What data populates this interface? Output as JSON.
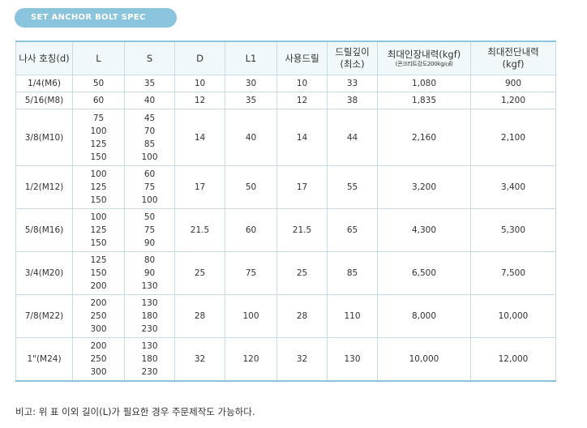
{
  "title": "SET ANCHOR BOLT SPEC",
  "headers": {
    "size": "나사 호칭(d)",
    "L": "L",
    "S": "S",
    "D": "D",
    "L1": "L1",
    "drill": "사용드릴",
    "depth1": "드릴깊이",
    "depth2": "(최소)",
    "tensile": "최대인장내력(kgf)",
    "tensile_note": "(콘크리트강도200kg/㎠)",
    "shear1": "최대전단내력",
    "shear2": "(kgf)"
  },
  "rows": [
    {
      "size": "1/4(M6)",
      "L": [
        "50"
      ],
      "S": [
        "35"
      ],
      "D": "10",
      "L1": "30",
      "drill": "10",
      "depth": "33",
      "tensile": "1,080",
      "shear": "900"
    },
    {
      "size": "5/16(M8)",
      "L": [
        "60"
      ],
      "S": [
        "40"
      ],
      "D": "12",
      "L1": "35",
      "drill": "12",
      "depth": "38",
      "tensile": "1,835",
      "shear": "1,200"
    },
    {
      "size": "3/8(M10)",
      "L": [
        "75",
        "100",
        "125",
        "150"
      ],
      "S": [
        "45",
        "70",
        "85",
        "100"
      ],
      "D": "14",
      "L1": "40",
      "drill": "14",
      "depth": "44",
      "tensile": "2,160",
      "shear": "2,100"
    },
    {
      "size": "1/2(M12)",
      "L": [
        "100",
        "125",
        "150"
      ],
      "S": [
        "60",
        "75",
        "100"
      ],
      "D": "17",
      "L1": "50",
      "drill": "17",
      "depth": "55",
      "tensile": "3,200",
      "shear": "3,400"
    },
    {
      "size": "5/8(M16)",
      "L": [
        "100",
        "125",
        "150"
      ],
      "S": [
        "50",
        "75",
        "90"
      ],
      "D": "21.5",
      "L1": "60",
      "drill": "21.5",
      "depth": "65",
      "tensile": "4,300",
      "shear": "5,300"
    },
    {
      "size": "3/4(M20)",
      "L": [
        "125",
        "150",
        "200"
      ],
      "S": [
        "80",
        "90",
        "130"
      ],
      "D": "25",
      "L1": "75",
      "drill": "25",
      "depth": "85",
      "tensile": "6,500",
      "shear": "7,500"
    },
    {
      "size": "7/8(M22)",
      "L": [
        "200",
        "250",
        "300"
      ],
      "S": [
        "130",
        "180",
        "230"
      ],
      "D": "28",
      "L1": "100",
      "drill": "28",
      "depth": "110",
      "tensile": "8,000",
      "shear": "10,000"
    },
    {
      "size": "1\"(M24)",
      "L": [
        "200",
        "250",
        "300"
      ],
      "S": [
        "130",
        "180",
        "230"
      ],
      "D": "32",
      "L1": "120",
      "drill": "32",
      "depth": "130",
      "tensile": "10,000",
      "shear": "12,000"
    }
  ],
  "note": "비고: 위 표 이외 길이(L)가 필요한 경우 주문제작도 가능하다.",
  "colors": {
    "accent": "#8ac4dd",
    "header_bg": "#f1f8fb",
    "border": "#c6dde8"
  }
}
